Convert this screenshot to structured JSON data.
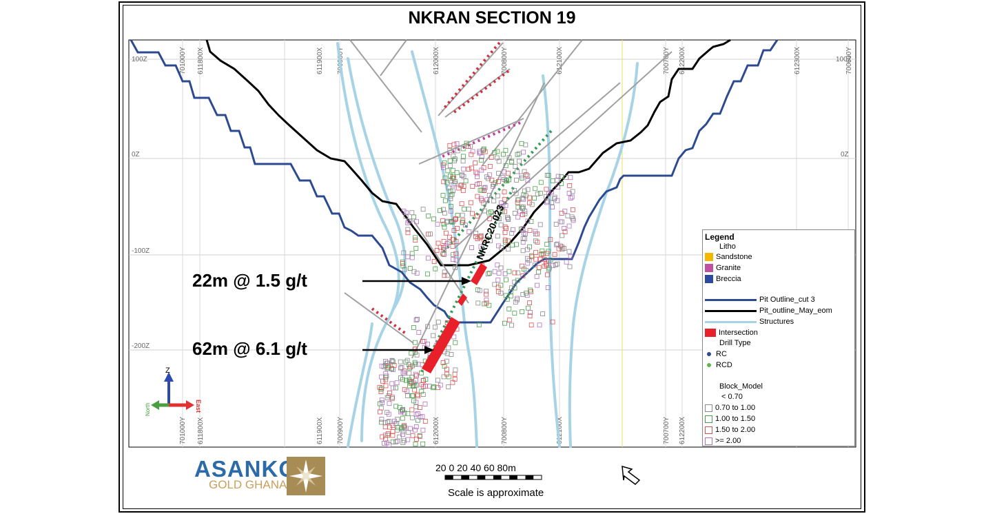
{
  "title": "NKRAN SECTION 19",
  "grid_labels": {
    "elevations": [
      "100Z",
      "0Z",
      "-100Z",
      "-200Z"
    ],
    "right_elevations": [
      "100Z",
      "0Z"
    ],
    "top_eastings": [
      "701000Y",
      "611800X",
      "611900X",
      "700900Y",
      "612000X",
      "700800Y",
      "612100X",
      "700700Y",
      "612200X",
      "612300X",
      "700600Y"
    ],
    "bottom_eastings": [
      "701000Y",
      "611800X",
      "611900X",
      "700900Y",
      "612000X",
      "700800Y",
      "612100X",
      "700700Y",
      "612200X"
    ]
  },
  "drillhole_label": "NKRC20-023",
  "annotations": [
    {
      "text": "22m @ 1.5 g/t"
    },
    {
      "text": "62m @ 6.1 g/t"
    }
  ],
  "axes_indicator": {
    "z": "Z",
    "north": "North",
    "east": "East"
  },
  "legend": {
    "title": "Legend",
    "litho_header": "Litho",
    "litho": [
      {
        "label": "Sandstone",
        "color": "#f5b800"
      },
      {
        "label": "Granite",
        "color": "#c050a0"
      },
      {
        "label": "Breccia",
        "color": "#2c4aa0"
      }
    ],
    "lines": [
      {
        "label": "Pit Outline_cut 3",
        "color": "#2c4a90"
      },
      {
        "label": "Pit_outline_May_eom",
        "color": "#000000"
      },
      {
        "label": "Structures",
        "color": "#a6d4e6"
      }
    ],
    "intersection": {
      "label": "Intersection",
      "color": "#e8202a"
    },
    "drill_type_header": "Drill Type",
    "drill_types": [
      {
        "label": "RC",
        "color": "#2c4a90"
      },
      {
        "label": "RCD",
        "color": "#5cb84c"
      }
    ],
    "block_model_header": "Block_Model",
    "block_model": [
      {
        "label": "< 0.70",
        "color": ""
      },
      {
        "label": "0.70 to 1.00",
        "color": "#888888"
      },
      {
        "label": "1.00 to 1.50",
        "color": "#4aa04a"
      },
      {
        "label": "1.50 to 2.00",
        "color": "#e05050"
      },
      {
        "label": ">= 2.00",
        "color": "#b070c0"
      }
    ]
  },
  "scale": {
    "ticks": "20 0 20 40 60 80m",
    "caption": "Scale is approximate"
  },
  "logo": {
    "name": "ASANKO",
    "sub": "GOLD GHANA"
  }
}
